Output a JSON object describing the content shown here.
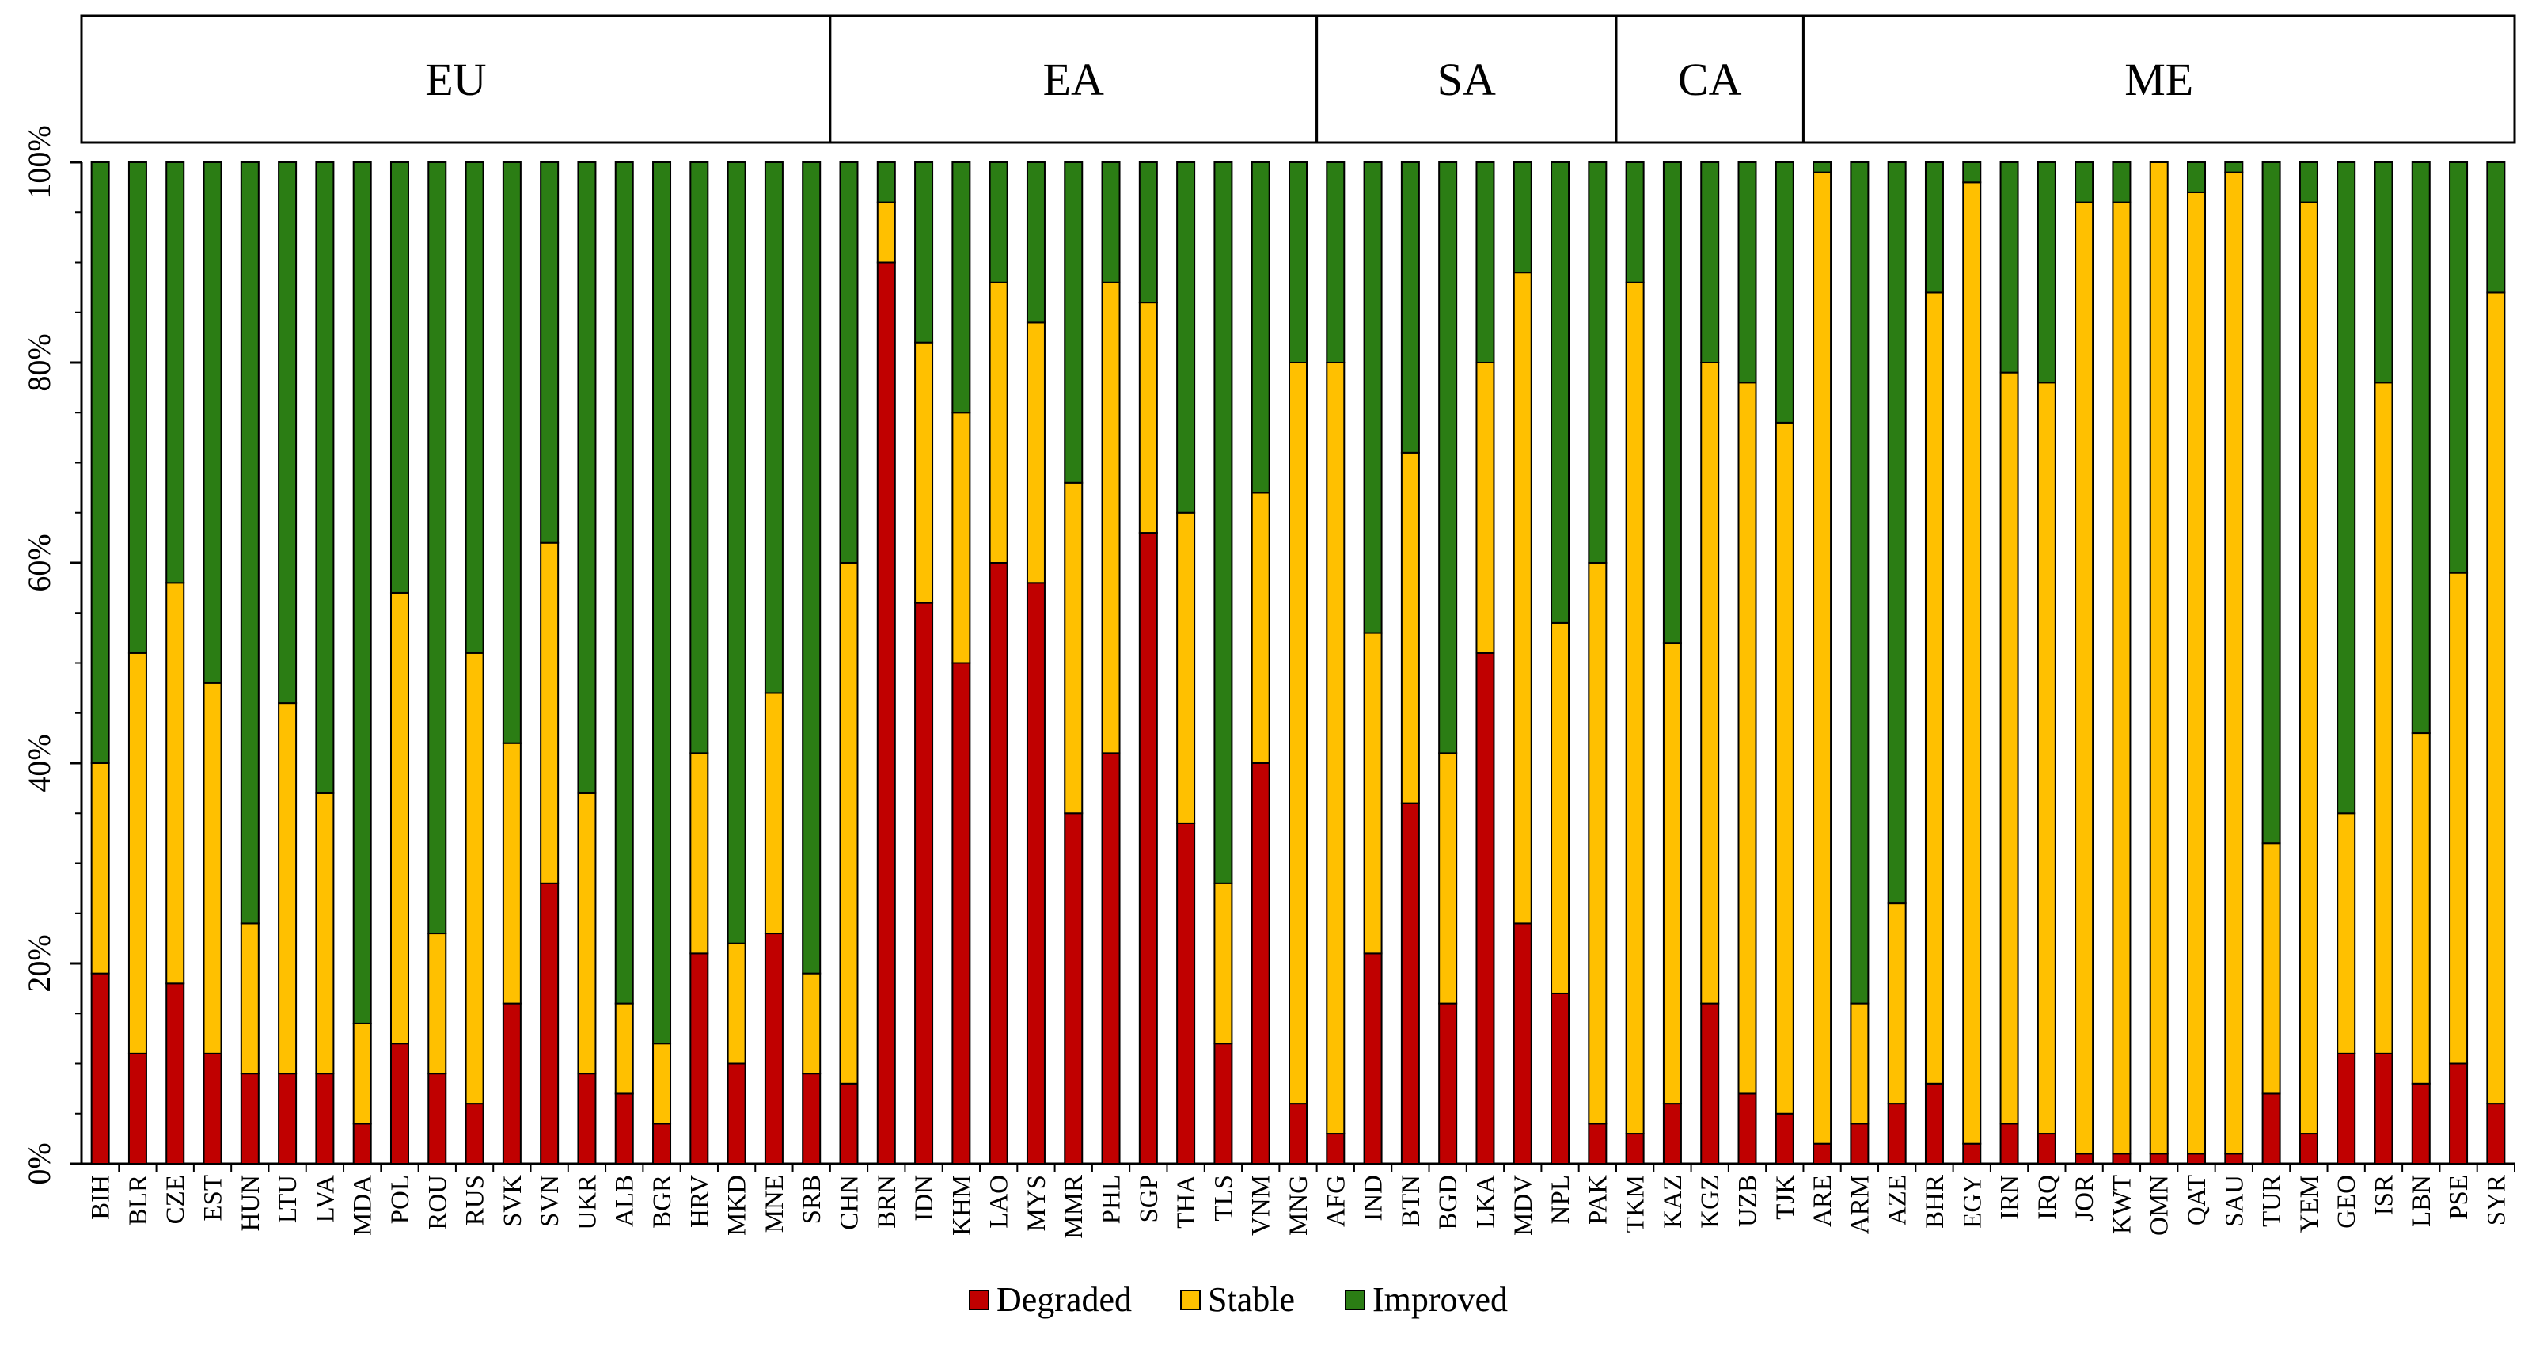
{
  "chart_data": {
    "type": "bar",
    "stacked": true,
    "percent": true,
    "yticks": [
      "0%",
      "20%",
      "40%",
      "60%",
      "80%",
      "100%"
    ],
    "ylim": [
      0,
      100
    ],
    "categories": [
      "BIH",
      "BLR",
      "CZE",
      "EST",
      "HUN",
      "LTU",
      "LVA",
      "MDA",
      "POL",
      "ROU",
      "RUS",
      "SVK",
      "SVN",
      "UKR",
      "ALB",
      "BGR",
      "HRV",
      "MKD",
      "MNE",
      "SRB",
      "CHN",
      "BRN",
      "IDN",
      "KHM",
      "LAO",
      "MYS",
      "MMR",
      "PHL",
      "SGP",
      "THA",
      "TLS",
      "VNM",
      "MNG",
      "AFG",
      "IND",
      "BTN",
      "BGD",
      "LKA",
      "MDV",
      "NPL",
      "PAK",
      "TKM",
      "KAZ",
      "KGZ",
      "UZB",
      "TJK",
      "ARE",
      "ARM",
      "AZE",
      "BHR",
      "EGY",
      "IRN",
      "IRQ",
      "JOR",
      "KWT",
      "OMN",
      "QAT",
      "SAU",
      "TUR",
      "YEM",
      "GEO",
      "ISR",
      "LBN",
      "PSE",
      "SYR"
    ],
    "regions": [
      {
        "label": "EU",
        "count": 20
      },
      {
        "label": "EA",
        "count": 13
      },
      {
        "label": "SA",
        "count": 8
      },
      {
        "label": "CA",
        "count": 5
      },
      {
        "label": "ME",
        "count": 19
      }
    ],
    "series": [
      {
        "name": "Degraded",
        "color": "#c00000",
        "values": [
          19,
          11,
          18,
          11,
          9,
          9,
          9,
          4,
          12,
          9,
          6,
          16,
          28,
          9,
          7,
          4,
          21,
          10,
          23,
          9,
          8,
          90,
          56,
          50,
          60,
          58,
          35,
          41,
          63,
          34,
          12,
          40,
          6,
          3,
          21,
          36,
          16,
          51,
          24,
          17,
          4,
          3,
          6,
          16,
          7,
          5,
          2,
          4,
          6,
          8,
          2,
          4,
          3,
          1,
          1,
          1,
          1,
          1,
          7,
          3,
          11,
          11,
          8,
          10,
          6
        ]
      },
      {
        "name": "Stable",
        "color": "#ffc000",
        "values": [
          21,
          40,
          40,
          37,
          15,
          37,
          28,
          10,
          45,
          14,
          45,
          26,
          34,
          28,
          9,
          8,
          20,
          12,
          24,
          10,
          52,
          6,
          26,
          25,
          28,
          26,
          33,
          47,
          23,
          31,
          16,
          27,
          74,
          77,
          32,
          35,
          25,
          29,
          65,
          37,
          56,
          85,
          46,
          64,
          71,
          69,
          97,
          12,
          20,
          79,
          96,
          75,
          75,
          95,
          95,
          99,
          96,
          98,
          25,
          93,
          24,
          67,
          35,
          49,
          81
        ]
      },
      {
        "name": "Improved",
        "color": "#2b7d14",
        "values": [
          60,
          49,
          42,
          52,
          76,
          54,
          63,
          86,
          43,
          77,
          49,
          58,
          38,
          63,
          84,
          88,
          59,
          78,
          53,
          81,
          40,
          4,
          18,
          25,
          12,
          16,
          32,
          12,
          14,
          35,
          72,
          33,
          20,
          20,
          47,
          29,
          59,
          20,
          11,
          46,
          40,
          12,
          48,
          20,
          22,
          26,
          1,
          84,
          74,
          13,
          2,
          21,
          22,
          4,
          4,
          0,
          3,
          1,
          68,
          4,
          65,
          22,
          57,
          41,
          13
        ]
      }
    ],
    "legend": [
      "Degraded",
      "Stable",
      "Improved"
    ],
    "legend_position": "bottom-center"
  }
}
